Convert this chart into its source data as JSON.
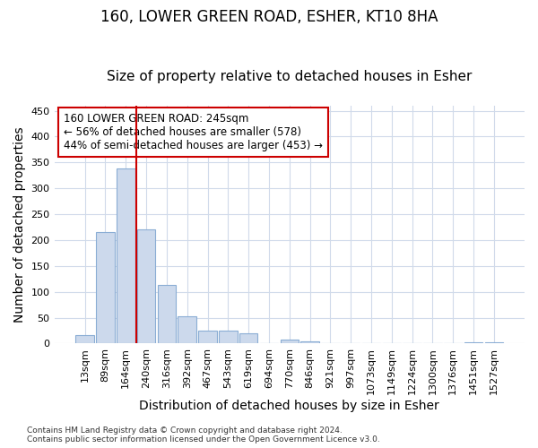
{
  "title1": "160, LOWER GREEN ROAD, ESHER, KT10 8HA",
  "title2": "Size of property relative to detached houses in Esher",
  "xlabel": "Distribution of detached houses by size in Esher",
  "ylabel": "Number of detached properties",
  "categories": [
    "13sqm",
    "89sqm",
    "164sqm",
    "240sqm",
    "316sqm",
    "392sqm",
    "467sqm",
    "543sqm",
    "619sqm",
    "694sqm",
    "770sqm",
    "846sqm",
    "921sqm",
    "997sqm",
    "1073sqm",
    "1149sqm",
    "1224sqm",
    "1300sqm",
    "1376sqm",
    "1451sqm",
    "1527sqm"
  ],
  "values": [
    17,
    215,
    338,
    220,
    113,
    53,
    25,
    25,
    20,
    0,
    8,
    5,
    0,
    0,
    0,
    0,
    0,
    0,
    0,
    3,
    2
  ],
  "bar_color": "#ccd9ec",
  "bar_edge_color": "#8aadd4",
  "vline_color": "#cc0000",
  "vline_x_index": 3,
  "annotation_text": "160 LOWER GREEN ROAD: 245sqm\n← 56% of detached houses are smaller (578)\n44% of semi-detached houses are larger (453) →",
  "annotation_box_color": "#ffffff",
  "annotation_box_edge": "#cc0000",
  "footnote1": "Contains HM Land Registry data © Crown copyright and database right 2024.",
  "footnote2": "Contains public sector information licensed under the Open Government Licence v3.0.",
  "ylim": [
    0,
    460
  ],
  "yticks": [
    0,
    50,
    100,
    150,
    200,
    250,
    300,
    350,
    400,
    450
  ],
  "background_color": "#ffffff",
  "grid_color": "#d0daea",
  "title_fontsize": 12,
  "subtitle_fontsize": 11,
  "tick_fontsize": 8,
  "label_fontsize": 10
}
